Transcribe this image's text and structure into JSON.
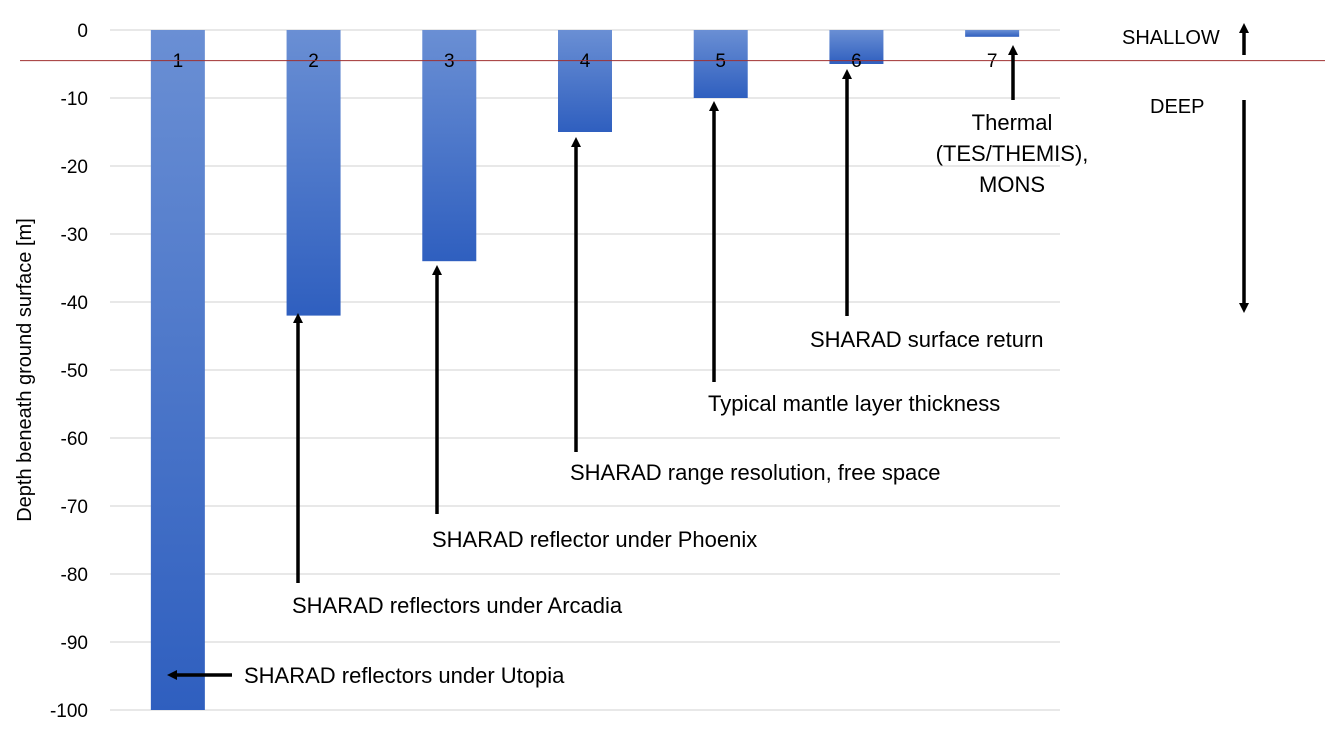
{
  "chart_data": {
    "type": "bar",
    "title": "",
    "xlabel": "",
    "ylabel": "Depth beneath ground surface [m]",
    "ylim": [
      -100,
      0
    ],
    "yticks": [
      "0",
      "-10",
      "-20",
      "-30",
      "-40",
      "-50",
      "-60",
      "-70",
      "-80",
      "-90",
      "-100"
    ],
    "ytick_values": [
      0,
      -10,
      -20,
      -30,
      -40,
      -50,
      -60,
      -70,
      -80,
      -90,
      -100
    ],
    "categories": [
      "1",
      "2",
      "3",
      "4",
      "5",
      "6",
      "7"
    ],
    "values": [
      -100,
      -42,
      -34,
      -15,
      -10,
      -5,
      -1
    ],
    "grid": true,
    "bar_color_top": "#6a8fd4",
    "bar_color_bottom": "#2f5fbf",
    "reference_line": {
      "value": -4.5,
      "color": "#a03030"
    },
    "annotations": [
      {
        "text": [
          "SHARAD reflectors under Utopia"
        ],
        "target_bar": 0,
        "arrow": "left"
      },
      {
        "text": [
          "SHARAD reflectors under Arcadia"
        ],
        "target_bar": 1,
        "arrow": "up"
      },
      {
        "text": [
          "SHARAD reflector under Phoenix"
        ],
        "target_bar": 2,
        "arrow": "up"
      },
      {
        "text": [
          "SHARAD range resolution, free space"
        ],
        "target_bar": 3,
        "arrow": "up"
      },
      {
        "text": [
          "Typical mantle layer thickness"
        ],
        "target_bar": 4,
        "arrow": "up"
      },
      {
        "text": [
          "SHARAD surface return"
        ],
        "target_bar": 5,
        "arrow": "up"
      },
      {
        "text": [
          "Thermal",
          "(TES/THEMIS),",
          "MONS"
        ],
        "target_bar": 6,
        "arrow": "up"
      }
    ],
    "side_labels": {
      "shallow": "SHALLOW",
      "deep": "DEEP"
    }
  }
}
